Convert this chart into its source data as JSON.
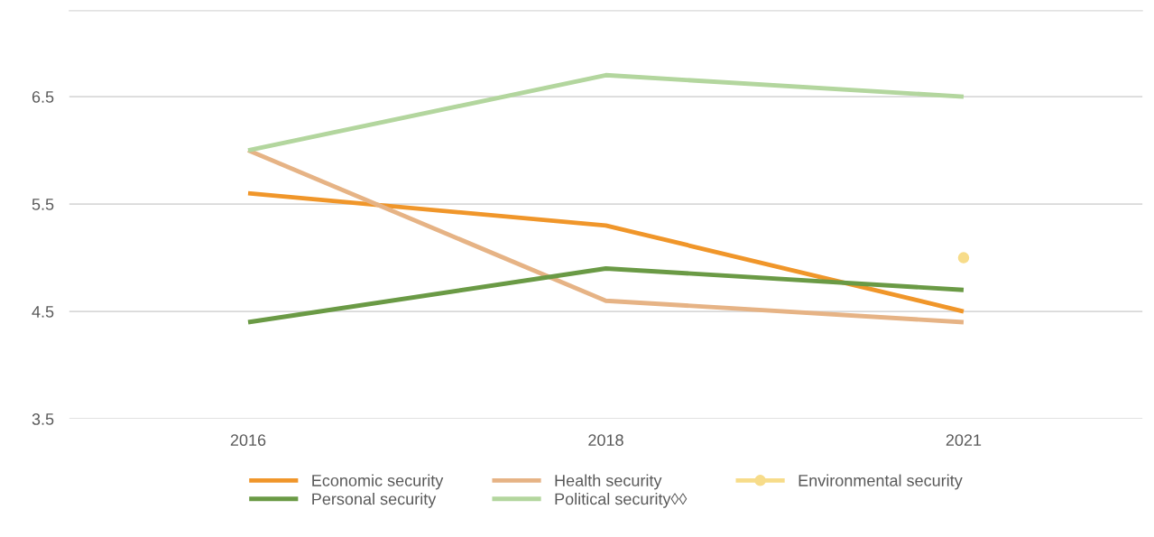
{
  "chart_data": {
    "type": "line",
    "categories": [
      "2016",
      "2018",
      "2021"
    ],
    "series": [
      {
        "name": "Economic security",
        "color": "#f0962a",
        "values": [
          5.6,
          5.3,
          4.5
        ]
      },
      {
        "name": "Health security",
        "color": "#e6b385",
        "values": [
          6.0,
          4.6,
          4.4
        ]
      },
      {
        "name": "Environmental security",
        "color": "#f7dc8a",
        "values": [
          null,
          null,
          5.0
        ],
        "marker": "circle"
      },
      {
        "name": "Personal security",
        "color": "#6a9a45",
        "values": [
          4.4,
          4.9,
          4.7
        ]
      },
      {
        "name": "Political security◊◊",
        "color": "#b3d69e",
        "values": [
          6.0,
          6.7,
          6.5
        ]
      }
    ],
    "ylim": [
      3.5,
      7.3
    ],
    "yticks": [
      3.5,
      4.5,
      5.5,
      6.5
    ],
    "grid": "y",
    "legend": "bottom",
    "marker": "none",
    "line_style": "solid"
  }
}
